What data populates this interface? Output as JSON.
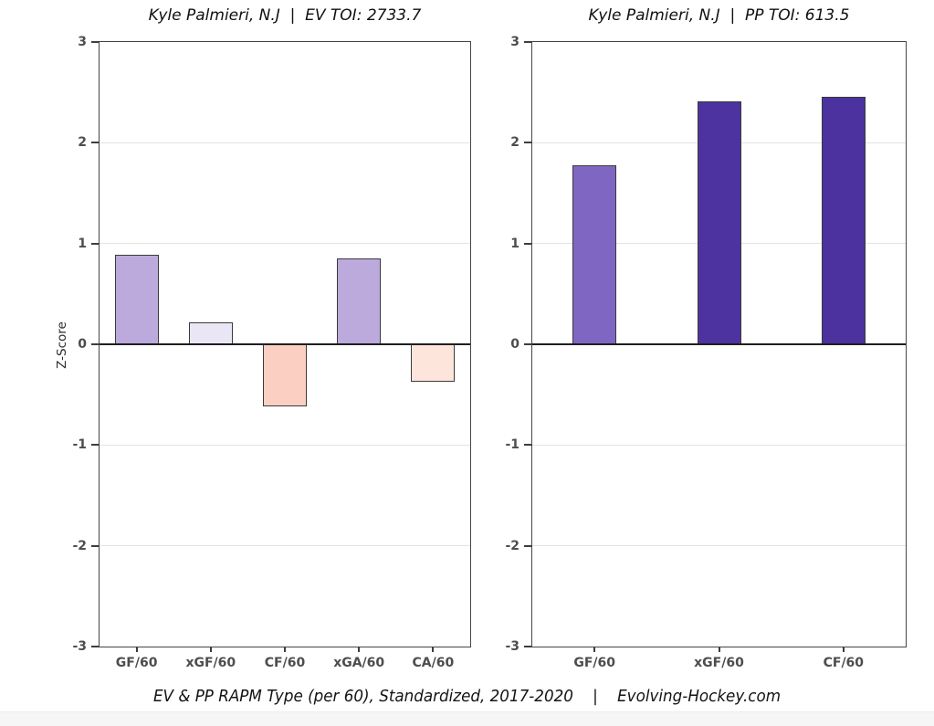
{
  "page": {
    "caption": "EV & PP RAPM Type (per 60), Standardized, 2017-2020    |    Evolving-Hockey.com"
  },
  "chart_data": [
    {
      "type": "bar",
      "title": "Kyle Palmieri, N.J  |  EV TOI: 2733.7",
      "ylabel": "Z-Score",
      "xlabel": "",
      "categories": [
        "GF/60",
        "xGF/60",
        "CF/60",
        "xGA/60",
        "CA/60"
      ],
      "values": [
        0.89,
        0.22,
        -0.62,
        0.85,
        -0.37
      ],
      "bar_colors": [
        "#bcaadd",
        "#ebe6f5",
        "#fbd0c3",
        "#bcaadd",
        "#fde5dc"
      ],
      "ylim": [
        -3,
        3
      ],
      "yticks": [
        3,
        2,
        1,
        0,
        -1,
        -2,
        -3
      ],
      "grid": true,
      "legend": false
    },
    {
      "type": "bar",
      "title": "Kyle Palmieri, N.J  |  PP TOI: 613.5",
      "ylabel": "",
      "xlabel": "",
      "categories": [
        "GF/60",
        "xGF/60",
        "CF/60"
      ],
      "values": [
        1.78,
        2.41,
        2.46
      ],
      "bar_colors": [
        "#8066c3",
        "#4c339f",
        "#4b329e"
      ],
      "ylim": [
        -3,
        3
      ],
      "yticks": [
        3,
        2,
        1,
        0,
        -1,
        -2,
        -3
      ],
      "grid": true,
      "legend": false
    }
  ],
  "style": {
    "bar_border_color": "#3a3a3a",
    "frame_color": "#454545",
    "grid_color": "#e4e4e4",
    "zero_line_color": "#1f1f1f",
    "tick_label_color": "#4d4d4d",
    "title_color": "#111111"
  }
}
